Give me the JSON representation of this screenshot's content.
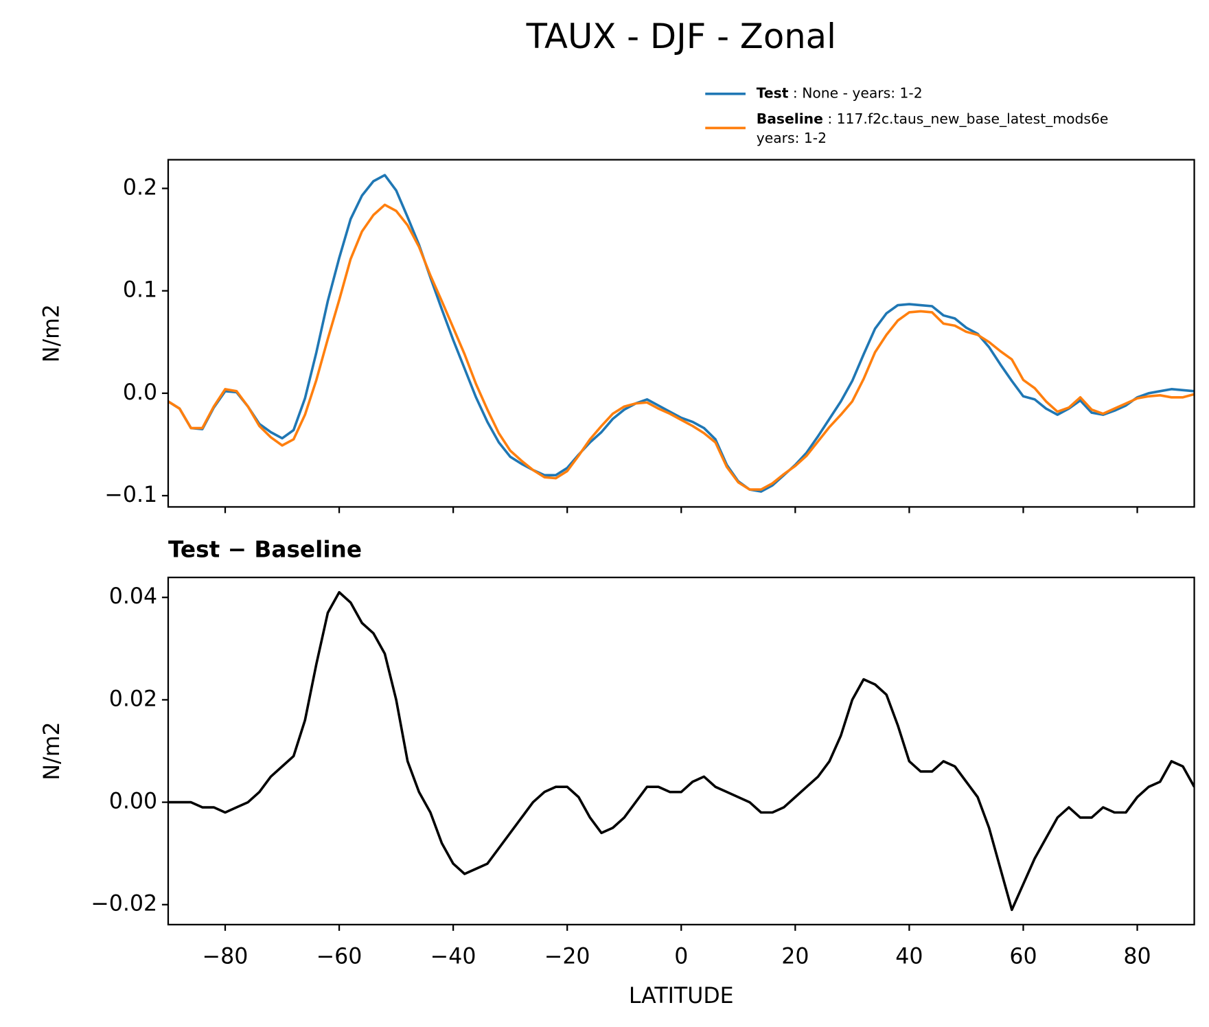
{
  "chart_data": [
    {
      "type": "line",
      "title": "TAUX - DJF - Zonal",
      "ylabel": "N/m2",
      "legend": "upper right",
      "x": [
        -90,
        -88,
        -86,
        -84,
        -82,
        -80,
        -78,
        -76,
        -74,
        -72,
        -70,
        -68,
        -66,
        -64,
        -62,
        -60,
        -58,
        -56,
        -54,
        -52,
        -50,
        -48,
        -46,
        -44,
        -42,
        -40,
        -38,
        -36,
        -34,
        -32,
        -30,
        -28,
        -26,
        -24,
        -22,
        -20,
        -18,
        -16,
        -14,
        -12,
        -10,
        -8,
        -6,
        -4,
        -2,
        0,
        2,
        4,
        6,
        8,
        10,
        12,
        14,
        16,
        18,
        20,
        22,
        24,
        26,
        28,
        30,
        32,
        34,
        36,
        38,
        40,
        42,
        44,
        46,
        48,
        50,
        52,
        54,
        56,
        58,
        60,
        62,
        64,
        66,
        68,
        70,
        72,
        74,
        76,
        78,
        80,
        82,
        84,
        86,
        88,
        90
      ],
      "series": [
        {
          "name": "Test : None - years: 1-2",
          "color": "#1f77b4",
          "values": [
            -0.008,
            -0.015,
            -0.034,
            -0.035,
            -0.014,
            0.002,
            0.001,
            -0.013,
            -0.03,
            -0.038,
            -0.044,
            -0.036,
            -0.005,
            0.04,
            0.09,
            0.132,
            0.17,
            0.193,
            0.207,
            0.213,
            0.198,
            0.172,
            0.145,
            0.113,
            0.082,
            0.052,
            0.024,
            -0.004,
            -0.028,
            -0.048,
            -0.062,
            -0.069,
            -0.075,
            -0.08,
            -0.08,
            -0.073,
            -0.06,
            -0.048,
            -0.038,
            -0.025,
            -0.016,
            -0.01,
            -0.006,
            -0.012,
            -0.018,
            -0.024,
            -0.028,
            -0.034,
            -0.045,
            -0.07,
            -0.086,
            -0.094,
            -0.096,
            -0.09,
            -0.08,
            -0.07,
            -0.058,
            -0.042,
            -0.025,
            -0.008,
            0.012,
            0.038,
            0.063,
            0.078,
            0.086,
            0.087,
            0.086,
            0.085,
            0.076,
            0.073,
            0.064,
            0.058,
            0.045,
            0.028,
            0.012,
            -0.003,
            -0.006,
            -0.015,
            -0.021,
            -0.015,
            -0.007,
            -0.019,
            -0.021,
            -0.017,
            -0.012,
            -0.004,
            0.0,
            0.002,
            0.004,
            0.003,
            0.002
          ]
        },
        {
          "name": "Baseline : 117.f2c.taus_new_base_latest_mods6e\nyears: 1-2",
          "color": "#ff7f0e",
          "values": [
            -0.008,
            -0.015,
            -0.034,
            -0.034,
            -0.013,
            0.004,
            0.002,
            -0.013,
            -0.032,
            -0.043,
            -0.051,
            -0.045,
            -0.021,
            0.013,
            0.053,
            0.091,
            0.131,
            0.158,
            0.174,
            0.184,
            0.178,
            0.164,
            0.143,
            0.115,
            0.09,
            0.064,
            0.038,
            0.009,
            -0.016,
            -0.039,
            -0.056,
            -0.066,
            -0.075,
            -0.082,
            -0.083,
            -0.076,
            -0.061,
            -0.045,
            -0.032,
            -0.02,
            -0.013,
            -0.01,
            -0.009,
            -0.015,
            -0.02,
            -0.026,
            -0.032,
            -0.039,
            -0.048,
            -0.072,
            -0.087,
            -0.094,
            -0.094,
            -0.088,
            -0.079,
            -0.071,
            -0.061,
            -0.047,
            -0.033,
            -0.021,
            -0.008,
            0.014,
            0.04,
            0.057,
            0.071,
            0.079,
            0.08,
            0.079,
            0.068,
            0.066,
            0.06,
            0.057,
            0.05,
            0.041,
            0.033,
            0.013,
            0.005,
            -0.008,
            -0.018,
            -0.014,
            -0.004,
            -0.016,
            -0.02,
            -0.015,
            -0.01,
            -0.005,
            -0.003,
            -0.002,
            -0.004,
            -0.004,
            -0.001
          ]
        }
      ],
      "xlim": [
        -90,
        90
      ],
      "xticks": [
        -80,
        -60,
        -40,
        -20,
        0,
        20,
        40,
        60,
        80
      ],
      "ylim": [
        -0.111,
        0.228
      ],
      "yticks": [
        {
          "value": -0.1,
          "label": "−0.1"
        },
        {
          "value": 0,
          "label": "0.0"
        },
        {
          "value": 0.1,
          "label": "0.1"
        },
        {
          "value": 0.2,
          "label": "0.2"
        }
      ]
    },
    {
      "type": "line",
      "title": "Test − Baseline",
      "xlabel": "LATITUDE",
      "ylabel": "N/m2",
      "x": [
        -90,
        -88,
        -86,
        -84,
        -82,
        -80,
        -78,
        -76,
        -74,
        -72,
        -70,
        -68,
        -66,
        -64,
        -62,
        -60,
        -58,
        -56,
        -54,
        -52,
        -50,
        -48,
        -46,
        -44,
        -42,
        -40,
        -38,
        -36,
        -34,
        -32,
        -30,
        -28,
        -26,
        -24,
        -22,
        -20,
        -18,
        -16,
        -14,
        -12,
        -10,
        -8,
        -6,
        -4,
        -2,
        0,
        2,
        4,
        6,
        8,
        10,
        12,
        14,
        16,
        18,
        20,
        22,
        24,
        26,
        28,
        30,
        32,
        34,
        36,
        38,
        40,
        42,
        44,
        46,
        48,
        50,
        52,
        54,
        56,
        58,
        60,
        62,
        64,
        66,
        68,
        70,
        72,
        74,
        76,
        78,
        80,
        82,
        84,
        86,
        88,
        90
      ],
      "series": [
        {
          "color": "#000000",
          "values": [
            0.0,
            0.0,
            0.0,
            -0.001,
            -0.001,
            -0.002,
            -0.001,
            0.0,
            0.002,
            0.005,
            0.007,
            0.009,
            0.016,
            0.027,
            0.037,
            0.041,
            0.039,
            0.035,
            0.033,
            0.029,
            0.02,
            0.008,
            0.002,
            -0.002,
            -0.008,
            -0.012,
            -0.014,
            -0.013,
            -0.012,
            -0.009,
            -0.006,
            -0.003,
            0.0,
            0.002,
            0.003,
            0.003,
            0.001,
            -0.003,
            -0.006,
            -0.005,
            -0.003,
            0.0,
            0.003,
            0.003,
            0.002,
            0.002,
            0.004,
            0.005,
            0.003,
            0.002,
            0.001,
            0.0,
            -0.002,
            -0.002,
            -0.001,
            0.001,
            0.003,
            0.005,
            0.008,
            0.013,
            0.02,
            0.024,
            0.023,
            0.021,
            0.015,
            0.008,
            0.006,
            0.006,
            0.008,
            0.007,
            0.004,
            0.001,
            -0.005,
            -0.013,
            -0.021,
            -0.016,
            -0.011,
            -0.007,
            -0.003,
            -0.001,
            -0.003,
            -0.003,
            -0.001,
            -0.002,
            -0.002,
            0.001,
            0.003,
            0.004,
            0.008,
            0.007,
            0.003
          ]
        }
      ],
      "xlim": [
        -90,
        90
      ],
      "xticks": [
        {
          "value": -80,
          "label": "−80"
        },
        {
          "value": -60,
          "label": "−60"
        },
        {
          "value": -40,
          "label": "−40"
        },
        {
          "value": -20,
          "label": "−20"
        },
        0,
        20,
        40,
        60,
        80
      ],
      "ylim": [
        -0.0239,
        0.0439
      ],
      "yticks": [
        {
          "value": -0.02,
          "label": "−0.02"
        },
        {
          "value": 0,
          "label": "0.00"
        },
        {
          "value": 0.02,
          "label": "0.02"
        },
        {
          "value": 0.04,
          "label": "0.04"
        }
      ]
    }
  ]
}
